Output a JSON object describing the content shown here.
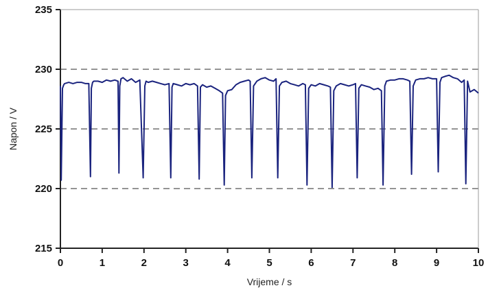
{
  "chart_data": {
    "type": "line",
    "xlabel": "Vrijeme / s",
    "ylabel": "Napon / V",
    "xlim": [
      0,
      10
    ],
    "ylim": [
      215,
      235
    ],
    "xticks": [
      0,
      1,
      2,
      3,
      4,
      5,
      6,
      7,
      8,
      9,
      10
    ],
    "yticks": [
      215,
      220,
      225,
      230,
      235
    ],
    "dashed_gridlines_y": [
      220,
      225,
      230
    ],
    "grid": "dashed horizontal at 220, 225, 230",
    "legend": "none",
    "series": [
      {
        "color": "#1a237e",
        "x": [
          0.0,
          0.02,
          0.05,
          0.08,
          0.1,
          0.2,
          0.3,
          0.4,
          0.5,
          0.6,
          0.68,
          0.72,
          0.74,
          0.77,
          0.8,
          0.9,
          1.0,
          1.1,
          1.2,
          1.3,
          1.38,
          1.4,
          1.42,
          1.45,
          1.5,
          1.6,
          1.7,
          1.8,
          1.9,
          1.98,
          2.02,
          2.05,
          2.1,
          2.2,
          2.3,
          2.4,
          2.5,
          2.6,
          2.64,
          2.67,
          2.7,
          2.8,
          2.9,
          3.0,
          3.1,
          3.2,
          3.28,
          3.32,
          3.35,
          3.4,
          3.5,
          3.6,
          3.7,
          3.8,
          3.88,
          3.92,
          3.95,
          4.0,
          4.1,
          4.2,
          4.3,
          4.4,
          4.5,
          4.54,
          4.58,
          4.62,
          4.7,
          4.8,
          4.9,
          5.0,
          5.1,
          5.16,
          5.2,
          5.24,
          5.3,
          5.4,
          5.5,
          5.6,
          5.7,
          5.8,
          5.86,
          5.9,
          5.94,
          6.0,
          6.1,
          6.2,
          6.3,
          6.4,
          6.46,
          6.5,
          6.54,
          6.6,
          6.7,
          6.8,
          6.9,
          7.0,
          7.06,
          7.1,
          7.14,
          7.2,
          7.3,
          7.4,
          7.5,
          7.6,
          7.68,
          7.72,
          7.76,
          7.8,
          7.9,
          8.0,
          8.1,
          8.2,
          8.3,
          8.36,
          8.4,
          8.44,
          8.5,
          8.6,
          8.7,
          8.8,
          8.9,
          9.0,
          9.04,
          9.08,
          9.12,
          9.2,
          9.3,
          9.4,
          9.5,
          9.6,
          9.66,
          9.7,
          9.74,
          9.8,
          9.9,
          10.0
        ],
        "y": [
          228.6,
          220.7,
          228.4,
          228.7,
          228.8,
          228.9,
          228.8,
          228.9,
          228.9,
          228.8,
          228.8,
          221.0,
          228.4,
          228.9,
          229.0,
          229.0,
          228.9,
          229.1,
          229.0,
          229.1,
          229.0,
          221.3,
          228.6,
          229.2,
          229.3,
          229.0,
          229.2,
          228.9,
          229.1,
          220.9,
          228.6,
          229.0,
          228.9,
          229.0,
          228.9,
          228.8,
          228.7,
          228.8,
          220.9,
          228.5,
          228.8,
          228.7,
          228.6,
          228.8,
          228.7,
          228.8,
          228.6,
          220.8,
          228.5,
          228.7,
          228.5,
          228.6,
          228.4,
          228.2,
          228.0,
          220.3,
          227.8,
          228.2,
          228.3,
          228.7,
          228.9,
          229.0,
          229.1,
          229.0,
          220.9,
          228.6,
          229.0,
          229.2,
          229.3,
          229.1,
          229.0,
          229.2,
          220.9,
          228.6,
          228.9,
          229.0,
          228.8,
          228.7,
          228.6,
          228.8,
          228.7,
          220.3,
          228.4,
          228.7,
          228.6,
          228.8,
          228.7,
          228.6,
          228.5,
          220.1,
          228.2,
          228.6,
          228.8,
          228.7,
          228.6,
          228.7,
          228.8,
          220.9,
          228.4,
          228.7,
          228.6,
          228.5,
          228.3,
          228.4,
          228.2,
          220.3,
          228.6,
          229.0,
          229.1,
          229.1,
          229.2,
          229.2,
          229.1,
          229.0,
          221.2,
          228.6,
          229.1,
          229.2,
          229.2,
          229.3,
          229.2,
          229.2,
          221.4,
          228.9,
          229.3,
          229.4,
          229.5,
          229.3,
          229.2,
          228.9,
          229.1,
          220.4,
          229.0,
          228.1,
          228.3,
          228.0
        ]
      }
    ]
  }
}
